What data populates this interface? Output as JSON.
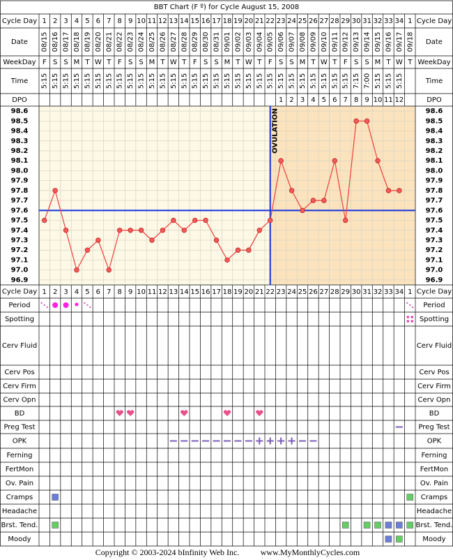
{
  "chart_data": {
    "type": "line",
    "title": "BBT Chart (F º) for Cycle August 15, 2008",
    "categories": [
      1,
      2,
      3,
      4,
      5,
      6,
      7,
      8,
      9,
      10,
      11,
      12,
      13,
      14,
      15,
      16,
      17,
      18,
      19,
      20,
      21,
      22,
      23,
      24,
      25,
      26,
      27,
      28,
      29,
      30,
      31,
      32,
      33,
      34,
      1
    ],
    "dates": [
      "08/15",
      "08/16",
      "08/17",
      "08/18",
      "08/19",
      "08/20",
      "08/21",
      "08/22",
      "08/23",
      "08/24",
      "08/25",
      "08/26",
      "08/27",
      "08/28",
      "08/29",
      "08/30",
      "08/31",
      "09/01",
      "09/02",
      "09/03",
      "09/04",
      "09/05",
      "09/06",
      "09/07",
      "09/08",
      "09/09",
      "09/10",
      "09/11",
      "09/12",
      "09/13",
      "09/14",
      "09/15",
      "09/16",
      "09/17",
      "09/18"
    ],
    "weekdays": [
      "F",
      "S",
      "S",
      "M",
      "T",
      "W",
      "T",
      "F",
      "S",
      "S",
      "M",
      "T",
      "W",
      "T",
      "F",
      "S",
      "S",
      "M",
      "T",
      "W",
      "T",
      "F",
      "S",
      "S",
      "M",
      "T",
      "W",
      "T",
      "F",
      "S",
      "S",
      "M",
      "T",
      "W",
      "T"
    ],
    "times": [
      "5:15",
      "5:15",
      "5:15",
      "5:15",
      "5:15",
      "5:15",
      "5:15",
      "5:15",
      "5:15",
      "5:15",
      "5:15",
      "5:15",
      "5:15",
      "5:15",
      "5:15",
      "5:15",
      "5:15",
      "5:15",
      "5:15",
      "5:15",
      "5:15",
      "5:15",
      "5:15",
      "5:15",
      "5:15",
      "5:15",
      "5:15",
      "5:15",
      "5:15",
      "7:15",
      "7:00",
      "5:15",
      "5:15",
      "5:15",
      null
    ],
    "dpo": [
      null,
      null,
      null,
      null,
      null,
      null,
      null,
      null,
      null,
      null,
      null,
      null,
      null,
      null,
      null,
      null,
      null,
      null,
      null,
      null,
      null,
      null,
      1,
      2,
      3,
      4,
      5,
      6,
      7,
      8,
      9,
      10,
      11,
      12,
      null
    ],
    "values": [
      97.5,
      97.8,
      97.4,
      97.0,
      97.2,
      97.3,
      97.0,
      97.4,
      97.4,
      97.4,
      97.3,
      97.4,
      97.5,
      97.4,
      97.5,
      97.5,
      97.3,
      97.1,
      97.2,
      97.2,
      97.4,
      97.5,
      98.1,
      97.8,
      97.6,
      97.7,
      97.7,
      98.1,
      97.5,
      98.5,
      98.5,
      98.1,
      97.8,
      97.8,
      null
    ],
    "color": "#f03c3c",
    "ylim": [
      96.85,
      98.65
    ],
    "yticks": [
      96.9,
      {
        "value": 97.0,
        "label": "97.0"
      },
      97.1,
      97.2,
      97.3,
      97.4,
      97.5,
      97.6,
      97.7,
      97.8,
      97.9,
      {
        "value": 98.0,
        "label": "98.0"
      },
      98.1,
      98.2,
      98.3,
      98.4,
      98.5,
      98.6
    ],
    "coverline": 97.6,
    "ovulation_day": 22,
    "ovulation_label": "OVULATION",
    "top_rows": [
      "Cycle Day",
      "Date",
      "WeekDay",
      "Time",
      "DPO"
    ],
    "lower_rows": [
      "Cycle Day",
      "Period",
      "Spotting",
      "Cerv Fluid",
      "Cerv Pos",
      "Cerv Firm",
      "Cerv Opn",
      "BD",
      "Preg Test",
      "OPK",
      "Ferning",
      "FertMon",
      "Ov. Pain",
      "Cramps",
      "Headache",
      "Brst. Tend.",
      "Moody"
    ],
    "copyright": "Copyright © 2003-2024 bInfinity Web Inc.",
    "website": "www.MyMonthlyCycles.com"
  }
}
